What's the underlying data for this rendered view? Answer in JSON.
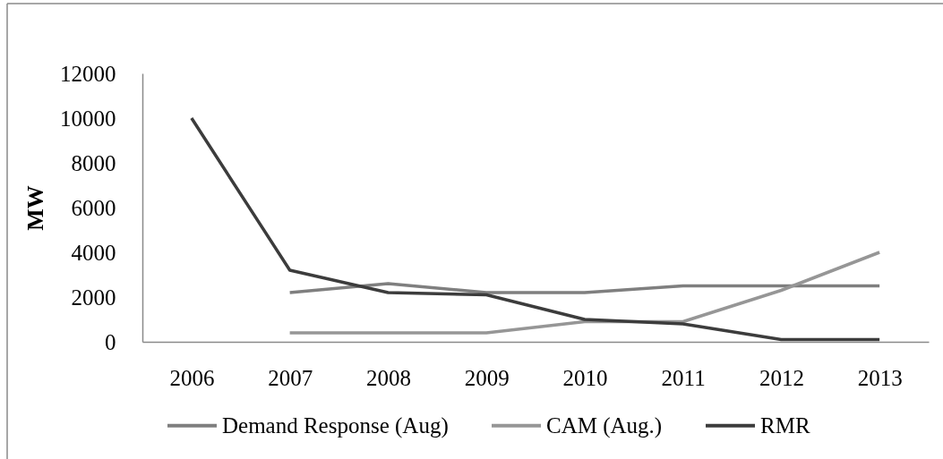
{
  "chart_data": {
    "type": "line",
    "ylabel": "MW",
    "categories": [
      "2006",
      "2007",
      "2008",
      "2009",
      "2010",
      "2011",
      "2012",
      "2013"
    ],
    "series": [
      {
        "name": "Demand Response (Aug)",
        "color": "#7f7f7f",
        "values": [
          null,
          2200,
          2600,
          2200,
          2200,
          2500,
          2500,
          2500
        ]
      },
      {
        "name": "CAM (Aug.)",
        "color": "#969696",
        "values": [
          null,
          400,
          400,
          400,
          900,
          900,
          2300,
          4000
        ]
      },
      {
        "name": "RMR",
        "color": "#3c3c3c",
        "values": [
          10000,
          3200,
          2200,
          2100,
          1000,
          800,
          100,
          100
        ]
      }
    ],
    "ylim": [
      0,
      12000
    ],
    "yticks": [
      0,
      2000,
      4000,
      6000,
      8000,
      10000,
      12000
    ],
    "grid": false,
    "legend": "bottom",
    "marker": "none",
    "line_style": "solid"
  }
}
